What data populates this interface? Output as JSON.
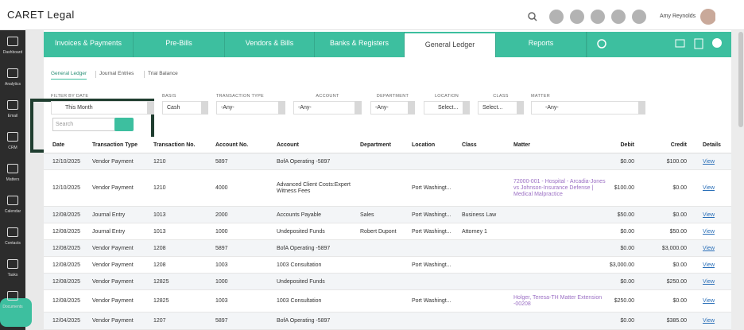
{
  "header": {
    "logo": "CARET Legal",
    "user": "Amy Reynolds"
  },
  "sidebar": [
    "Dashboard",
    "Analytics",
    "Email",
    "CRM",
    "Matters",
    "Calendar",
    "Contacts",
    "Tasks",
    "Documents"
  ],
  "tabs": [
    "Invoices & Payments",
    "Pre-Bills",
    "Vendors & Bills",
    "Banks & Registers",
    "General Ledger",
    "Reports"
  ],
  "subtabs": [
    "General Ledger",
    "Journal Entries",
    "Trial Balance"
  ],
  "filters": [
    {
      "label": "FILTER BY DATE",
      "value": "This Month"
    },
    {
      "label": "BASIS",
      "value": "Cash"
    },
    {
      "label": "TRANSACTION TYPE",
      "value": "-Any-"
    },
    {
      "label": "ACCOUNT",
      "value": "-Any-"
    },
    {
      "label": "DEPARTMENT",
      "value": "-Any-"
    },
    {
      "label": "LOCATION",
      "value": "Select..."
    },
    {
      "label": "CLASS",
      "value": "Select..."
    },
    {
      "label": "MATTER",
      "value": "-Any-"
    }
  ],
  "search_placeholder": "Search",
  "table": {
    "columns": [
      "Date",
      "Transaction Type",
      "Transaction No.",
      "Account No.",
      "Account",
      "Department",
      "Location",
      "Class",
      "Matter",
      "Debit",
      "Credit",
      "Details"
    ],
    "rows": [
      {
        "date": "12/10/2025",
        "type": "Vendor Payment",
        "txn": "1210",
        "acct_no": "5897",
        "account": "BofA Operating -5897",
        "debit": "$0.00",
        "credit": "$100.00",
        "details": "View"
      },
      {
        "date": "12/10/2025",
        "type": "Vendor Payment",
        "txn": "1210",
        "acct_no": "4000",
        "account": "Advanced Client Costs:Expert Witness Fees",
        "location": "Port Washingt...",
        "matter": "72000-001 - Hospital - Arcadia-Jones vs Johnson-Insurance Defense | Medical Malpractice",
        "debit": "$100.00",
        "credit": "$0.00",
        "details": "View"
      },
      {
        "date": "12/08/2025",
        "type": "Journal Entry",
        "txn": "1013",
        "acct_no": "2000",
        "account": "Accounts Payable",
        "department": "Sales",
        "location": "Port Washingt...",
        "class": "Business Law",
        "debit": "$50.00",
        "credit": "$0.00",
        "details": "View"
      },
      {
        "date": "12/08/2025",
        "type": "Journal Entry",
        "txn": "1013",
        "acct_no": "1000",
        "account": "Undeposited Funds",
        "department": "Robert Dupont",
        "location": "Port Washingt...",
        "class": "Attorney 1",
        "debit": "$0.00",
        "credit": "$50.00",
        "details": "View"
      },
      {
        "date": "12/08/2025",
        "type": "Vendor Payment",
        "txn": "1208",
        "acct_no": "5897",
        "account": "BofA Operating -5897",
        "debit": "$0.00",
        "credit": "$3,000.00",
        "details": "View"
      },
      {
        "date": "12/08/2025",
        "type": "Vendor Payment",
        "txn": "1208",
        "acct_no": "1003",
        "account": "1003 Consultation",
        "location": "Port Washingt...",
        "debit": "$3,000.00",
        "credit": "$0.00",
        "details": "View"
      },
      {
        "date": "12/08/2025",
        "type": "Vendor Payment",
        "txn": "12825",
        "acct_no": "1000",
        "account": "Undeposited Funds",
        "debit": "$0.00",
        "credit": "$250.00",
        "details": "View"
      },
      {
        "date": "12/08/2025",
        "type": "Vendor Payment",
        "txn": "12825",
        "acct_no": "1003",
        "account": "1003 Consultation",
        "location": "Port Washingt...",
        "matter": "Holger, Teresa-TH Matter Extension -00208",
        "debit": "$250.00",
        "credit": "$0.00",
        "details": "View"
      },
      {
        "date": "12/04/2025",
        "type": "Vendor Payment",
        "txn": "1207",
        "acct_no": "5897",
        "account": "BofA Operating -5897",
        "debit": "$0.00",
        "credit": "$385.00",
        "details": "View"
      }
    ]
  }
}
